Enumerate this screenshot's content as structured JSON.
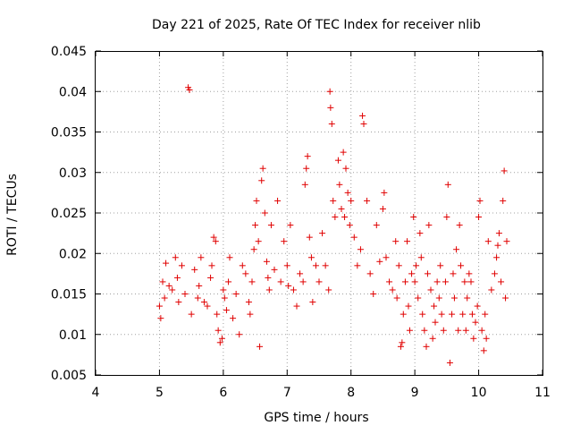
{
  "chart_data": {
    "type": "scatter",
    "title": "Day 221 of 2025, Rate Of TEC Index for receiver nlib",
    "xlabel": "GPS time / hours",
    "ylabel": "ROTI / TECUs",
    "xlim": [
      4,
      11
    ],
    "ylim": [
      0.005,
      0.045
    ],
    "x_ticks": [
      "4",
      "5",
      "6",
      "7",
      "8",
      "9",
      "10",
      "11"
    ],
    "y_ticks": [
      "0.005",
      "0.01",
      "0.015",
      "0.02",
      "0.025",
      "0.03",
      "0.035",
      "0.04",
      "0.045"
    ],
    "grid": true,
    "marker": "plus",
    "color": "#e00000",
    "points": [
      [
        5.0,
        0.0135
      ],
      [
        5.02,
        0.012
      ],
      [
        5.05,
        0.0165
      ],
      [
        5.08,
        0.0145
      ],
      [
        5.1,
        0.0188
      ],
      [
        5.15,
        0.016
      ],
      [
        5.2,
        0.0155
      ],
      [
        5.25,
        0.0195
      ],
      [
        5.28,
        0.017
      ],
      [
        5.3,
        0.014
      ],
      [
        5.35,
        0.0185
      ],
      [
        5.4,
        0.015
      ],
      [
        5.45,
        0.0405
      ],
      [
        5.47,
        0.0402
      ],
      [
        5.5,
        0.0125
      ],
      [
        5.55,
        0.018
      ],
      [
        5.6,
        0.0145
      ],
      [
        5.62,
        0.016
      ],
      [
        5.65,
        0.0195
      ],
      [
        5.7,
        0.014
      ],
      [
        5.75,
        0.0135
      ],
      [
        5.8,
        0.017
      ],
      [
        5.82,
        0.0185
      ],
      [
        5.85,
        0.022
      ],
      [
        5.88,
        0.0215
      ],
      [
        5.9,
        0.0125
      ],
      [
        5.92,
        0.0105
      ],
      [
        5.95,
        0.009
      ],
      [
        5.98,
        0.0095
      ],
      [
        6.0,
        0.0155
      ],
      [
        6.02,
        0.0145
      ],
      [
        6.05,
        0.013
      ],
      [
        6.08,
        0.0165
      ],
      [
        6.1,
        0.0195
      ],
      [
        6.15,
        0.012
      ],
      [
        6.2,
        0.015
      ],
      [
        6.25,
        0.01
      ],
      [
        6.3,
        0.0185
      ],
      [
        6.35,
        0.0175
      ],
      [
        6.4,
        0.014
      ],
      [
        6.42,
        0.0125
      ],
      [
        6.45,
        0.0165
      ],
      [
        6.48,
        0.0205
      ],
      [
        6.5,
        0.0235
      ],
      [
        6.52,
        0.0265
      ],
      [
        6.55,
        0.0215
      ],
      [
        6.57,
        0.0085
      ],
      [
        6.6,
        0.029
      ],
      [
        6.62,
        0.0305
      ],
      [
        6.65,
        0.025
      ],
      [
        6.68,
        0.019
      ],
      [
        6.7,
        0.017
      ],
      [
        6.72,
        0.0155
      ],
      [
        6.75,
        0.0235
      ],
      [
        6.8,
        0.018
      ],
      [
        6.85,
        0.0265
      ],
      [
        6.9,
        0.0165
      ],
      [
        6.95,
        0.0215
      ],
      [
        7.0,
        0.0185
      ],
      [
        7.02,
        0.016
      ],
      [
        7.05,
        0.0235
      ],
      [
        7.1,
        0.0155
      ],
      [
        7.15,
        0.0135
      ],
      [
        7.2,
        0.0175
      ],
      [
        7.25,
        0.0165
      ],
      [
        7.28,
        0.0285
      ],
      [
        7.3,
        0.0305
      ],
      [
        7.32,
        0.032
      ],
      [
        7.35,
        0.022
      ],
      [
        7.38,
        0.0195
      ],
      [
        7.4,
        0.014
      ],
      [
        7.45,
        0.0185
      ],
      [
        7.5,
        0.0165
      ],
      [
        7.55,
        0.0225
      ],
      [
        7.6,
        0.0185
      ],
      [
        7.65,
        0.0155
      ],
      [
        7.67,
        0.04
      ],
      [
        7.68,
        0.038
      ],
      [
        7.7,
        0.036
      ],
      [
        7.72,
        0.0265
      ],
      [
        7.75,
        0.0245
      ],
      [
        7.8,
        0.0315
      ],
      [
        7.82,
        0.0285
      ],
      [
        7.85,
        0.0255
      ],
      [
        7.88,
        0.0325
      ],
      [
        7.9,
        0.0245
      ],
      [
        7.92,
        0.0305
      ],
      [
        7.95,
        0.0275
      ],
      [
        7.98,
        0.0235
      ],
      [
        8.0,
        0.0265
      ],
      [
        8.05,
        0.022
      ],
      [
        8.1,
        0.0185
      ],
      [
        8.15,
        0.0205
      ],
      [
        8.18,
        0.037
      ],
      [
        8.2,
        0.036
      ],
      [
        8.25,
        0.0265
      ],
      [
        8.3,
        0.0175
      ],
      [
        8.35,
        0.015
      ],
      [
        8.4,
        0.0235
      ],
      [
        8.45,
        0.019
      ],
      [
        8.5,
        0.0255
      ],
      [
        8.52,
        0.0275
      ],
      [
        8.55,
        0.0195
      ],
      [
        8.6,
        0.0165
      ],
      [
        8.65,
        0.0155
      ],
      [
        8.7,
        0.0215
      ],
      [
        8.72,
        0.0145
      ],
      [
        8.75,
        0.0185
      ],
      [
        8.78,
        0.0085
      ],
      [
        8.8,
        0.009
      ],
      [
        8.82,
        0.0125
      ],
      [
        8.85,
        0.0165
      ],
      [
        8.88,
        0.0215
      ],
      [
        8.9,
        0.0135
      ],
      [
        8.92,
        0.0105
      ],
      [
        8.95,
        0.0175
      ],
      [
        8.98,
        0.0245
      ],
      [
        9.0,
        0.0165
      ],
      [
        9.02,
        0.0185
      ],
      [
        9.05,
        0.0145
      ],
      [
        9.08,
        0.0225
      ],
      [
        9.1,
        0.0195
      ],
      [
        9.12,
        0.0125
      ],
      [
        9.15,
        0.0105
      ],
      [
        9.18,
        0.0085
      ],
      [
        9.2,
        0.0175
      ],
      [
        9.22,
        0.0235
      ],
      [
        9.25,
        0.0155
      ],
      [
        9.28,
        0.0095
      ],
      [
        9.3,
        0.0135
      ],
      [
        9.32,
        0.0115
      ],
      [
        9.35,
        0.0165
      ],
      [
        9.38,
        0.0145
      ],
      [
        9.4,
        0.0185
      ],
      [
        9.42,
        0.0125
      ],
      [
        9.45,
        0.0105
      ],
      [
        9.48,
        0.0165
      ],
      [
        9.5,
        0.0245
      ],
      [
        9.52,
        0.0285
      ],
      [
        9.55,
        0.0065
      ],
      [
        9.58,
        0.0125
      ],
      [
        9.6,
        0.0175
      ],
      [
        9.62,
        0.0145
      ],
      [
        9.65,
        0.0205
      ],
      [
        9.68,
        0.0105
      ],
      [
        9.7,
        0.0235
      ],
      [
        9.72,
        0.0185
      ],
      [
        9.75,
        0.0125
      ],
      [
        9.78,
        0.0165
      ],
      [
        9.8,
        0.0105
      ],
      [
        9.82,
        0.0145
      ],
      [
        9.85,
        0.0175
      ],
      [
        9.88,
        0.0165
      ],
      [
        9.9,
        0.0125
      ],
      [
        9.92,
        0.0095
      ],
      [
        9.95,
        0.0115
      ],
      [
        9.98,
        0.0135
      ],
      [
        10.0,
        0.0245
      ],
      [
        10.02,
        0.0265
      ],
      [
        10.05,
        0.0105
      ],
      [
        10.08,
        0.008
      ],
      [
        10.1,
        0.0125
      ],
      [
        10.12,
        0.0095
      ],
      [
        10.15,
        0.0215
      ],
      [
        10.2,
        0.0155
      ],
      [
        10.25,
        0.0175
      ],
      [
        10.28,
        0.0195
      ],
      [
        10.3,
        0.021
      ],
      [
        10.32,
        0.0225
      ],
      [
        10.35,
        0.0165
      ],
      [
        10.38,
        0.0265
      ],
      [
        10.4,
        0.0302
      ],
      [
        10.42,
        0.0145
      ],
      [
        10.44,
        0.0215
      ]
    ]
  }
}
